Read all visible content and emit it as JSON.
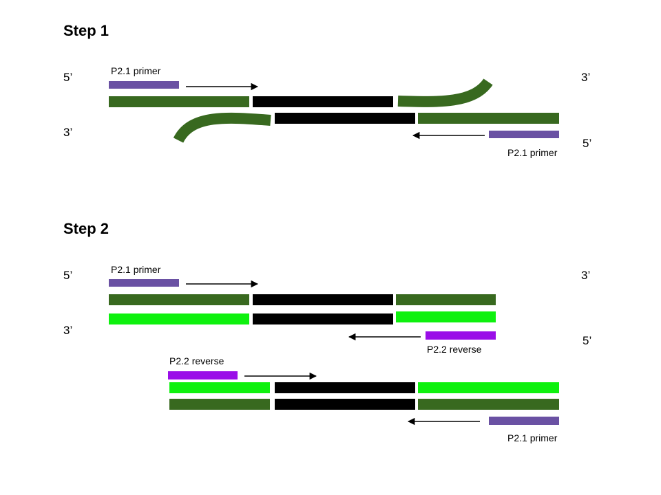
{
  "colors": {
    "dark_green": "#38691f",
    "bright_green": "#0ef10e",
    "black": "#000000",
    "primer_blue_purple": "#6a51a3",
    "primer_violet": "#9a0ee8",
    "arrow": "#000000"
  },
  "step1": {
    "title": "Step 1",
    "end_left_top": "5’",
    "end_left_bottom": "3’",
    "end_right_top": "3’",
    "end_right_bottom": "5’",
    "primer_top_label": "P2.1 primer",
    "primer_bottom_label": "P2.1 primer"
  },
  "step2": {
    "title": "Step 2",
    "end_left_top": "5’",
    "end_left_bottom": "3’",
    "end_right_top": "3’",
    "end_right_bottom": "5’",
    "primer_top_label": "P2.1 primer",
    "primer_middle_label": "P2.2 reverse",
    "primer_lower_left_label": "P2.2 reverse",
    "primer_bottom_label": "P2.1 primer"
  }
}
